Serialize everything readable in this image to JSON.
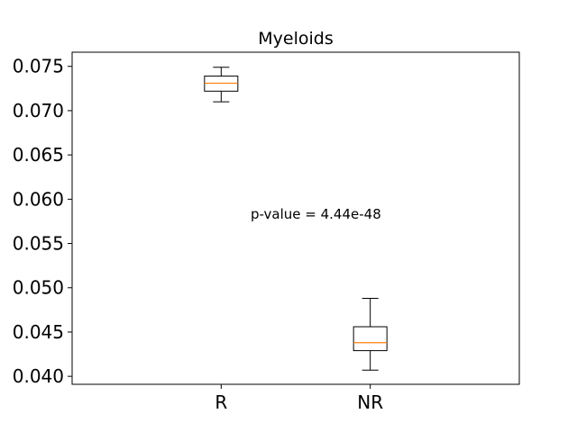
{
  "chart_data": {
    "type": "box",
    "title": "Myeloids",
    "xlabel": "",
    "ylabel": "",
    "categories": [
      "R",
      "NR"
    ],
    "boxes": [
      {
        "name": "R",
        "whisker_low": 0.071,
        "q1": 0.0722,
        "median": 0.0731,
        "q3": 0.0739,
        "whisker_high": 0.0749
      },
      {
        "name": "NR",
        "whisker_low": 0.0407,
        "q1": 0.0429,
        "median": 0.0438,
        "q3": 0.0456,
        "whisker_high": 0.0488
      }
    ],
    "ylim": [
      0.0391,
      0.0766
    ],
    "yticks": [
      0.04,
      0.045,
      0.05,
      0.055,
      0.06,
      0.065,
      0.07,
      0.075
    ],
    "ytick_labels": [
      "0.040",
      "0.045",
      "0.050",
      "0.055",
      "0.060",
      "0.065",
      "0.070",
      "0.075"
    ],
    "annotation": "p-value = 4.44e-48",
    "grid": false,
    "colors": {
      "box": "#000000",
      "median": "#ff7f0e"
    }
  }
}
